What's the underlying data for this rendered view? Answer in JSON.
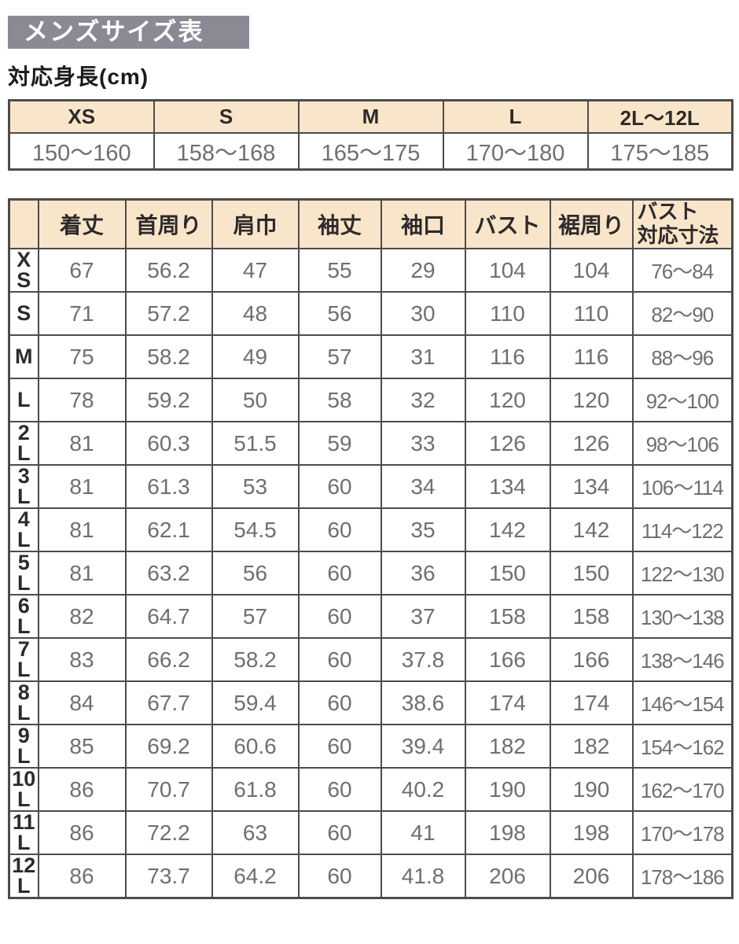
{
  "title": "メンズサイズ表",
  "height_section": {
    "caption": "対応身長(cm)",
    "columns": [
      "XS",
      "S",
      "M",
      "L",
      "2L〜12L"
    ],
    "values": [
      "150〜160",
      "158〜168",
      "165〜175",
      "170〜180",
      "175〜185"
    ]
  },
  "size_table": {
    "corner_label": "",
    "columns": [
      "着丈",
      "首周り",
      "肩巾",
      "袖丈",
      "袖口",
      "バスト",
      "裾周り",
      "バスト\n対応寸法"
    ],
    "rows": [
      {
        "label": "X\nS",
        "values": [
          "67",
          "56.2",
          "47",
          "55",
          "29",
          "104",
          "104",
          "76〜84"
        ]
      },
      {
        "label": "S",
        "values": [
          "71",
          "57.2",
          "48",
          "56",
          "30",
          "110",
          "110",
          "82〜90"
        ]
      },
      {
        "label": "M",
        "values": [
          "75",
          "58.2",
          "49",
          "57",
          "31",
          "116",
          "116",
          "88〜96"
        ]
      },
      {
        "label": "L",
        "values": [
          "78",
          "59.2",
          "50",
          "58",
          "32",
          "120",
          "120",
          "92〜100"
        ]
      },
      {
        "label": "2\nL",
        "values": [
          "81",
          "60.3",
          "51.5",
          "59",
          "33",
          "126",
          "126",
          "98〜106"
        ]
      },
      {
        "label": "3\nL",
        "values": [
          "81",
          "61.3",
          "53",
          "60",
          "34",
          "134",
          "134",
          "106〜114"
        ]
      },
      {
        "label": "4\nL",
        "values": [
          "81",
          "62.1",
          "54.5",
          "60",
          "35",
          "142",
          "142",
          "114〜122"
        ]
      },
      {
        "label": "5\nL",
        "values": [
          "81",
          "63.2",
          "56",
          "60",
          "36",
          "150",
          "150",
          "122〜130"
        ]
      },
      {
        "label": "6\nL",
        "values": [
          "82",
          "64.7",
          "57",
          "60",
          "37",
          "158",
          "158",
          "130〜138"
        ]
      },
      {
        "label": "7\nL",
        "values": [
          "83",
          "66.2",
          "58.2",
          "60",
          "37.8",
          "166",
          "166",
          "138〜146"
        ]
      },
      {
        "label": "8\nL",
        "values": [
          "84",
          "67.7",
          "59.4",
          "60",
          "38.6",
          "174",
          "174",
          "146〜154"
        ]
      },
      {
        "label": "9\nL",
        "values": [
          "85",
          "69.2",
          "60.6",
          "60",
          "39.4",
          "182",
          "182",
          "154〜162"
        ]
      },
      {
        "label": "10\nL",
        "values": [
          "86",
          "70.7",
          "61.8",
          "60",
          "40.2",
          "190",
          "190",
          "162〜170"
        ]
      },
      {
        "label": "11\nL",
        "values": [
          "86",
          "72.2",
          "63",
          "60",
          "41",
          "198",
          "198",
          "170〜178"
        ]
      },
      {
        "label": "12\nL",
        "values": [
          "86",
          "73.7",
          "64.2",
          "60",
          "41.8",
          "206",
          "206",
          "178〜186"
        ]
      }
    ]
  },
  "colors": {
    "title_bg": "#8c8994",
    "title_text": "#ffffff",
    "header_bg": "#f9e6ca",
    "border": "#4e4b4c",
    "value_text": "#6f6f6f",
    "label_text": "#2d2a2b"
  }
}
